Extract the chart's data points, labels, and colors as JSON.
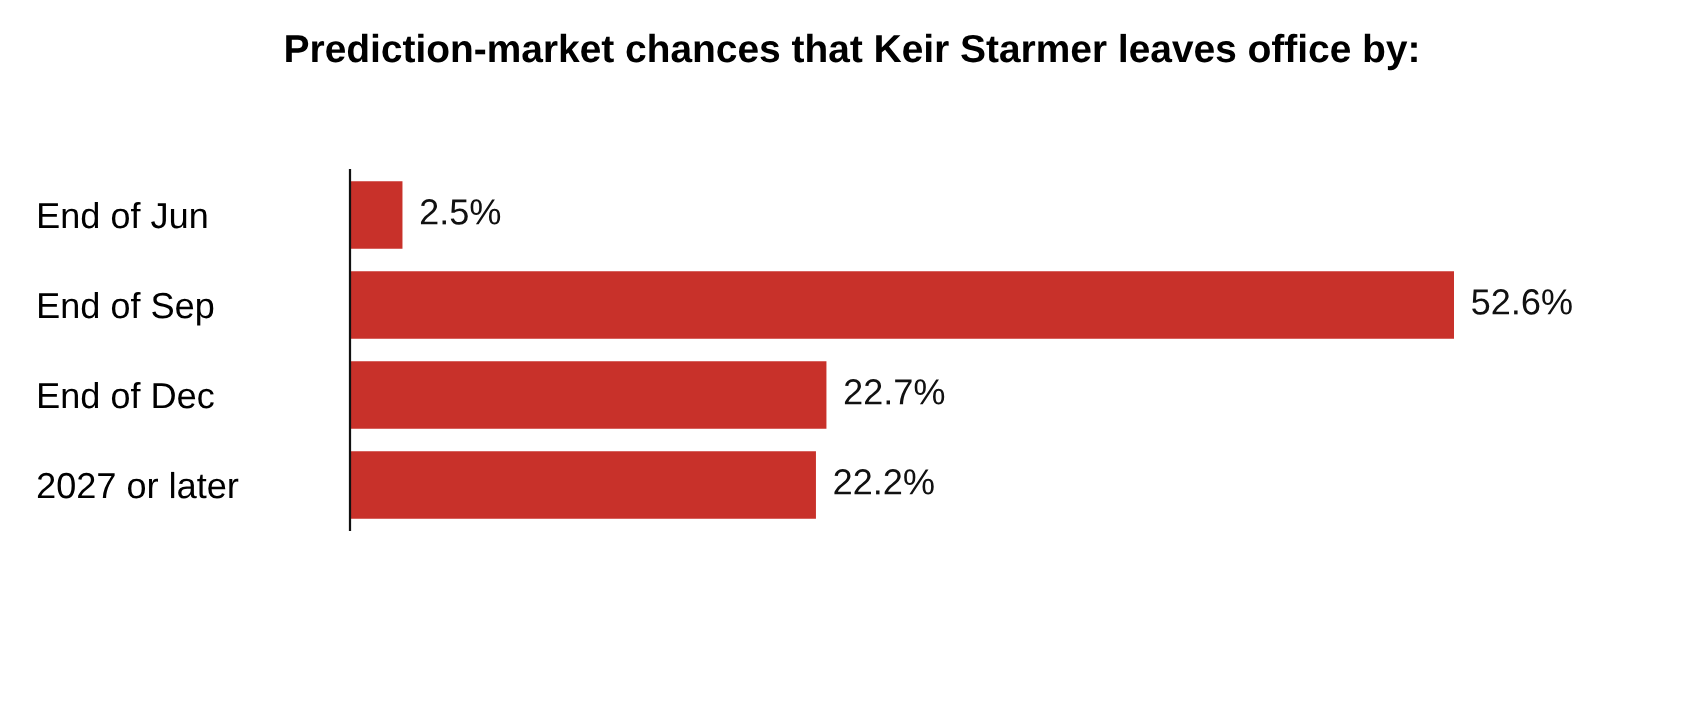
{
  "chart_data": {
    "type": "bar",
    "orientation": "horizontal",
    "title": "Prediction-market chances that Keir Starmer leaves office by:",
    "categories": [
      "End of Jun",
      "End of Sep",
      "End of Dec",
      "2027 or later"
    ],
    "values": [
      2.5,
      52.6,
      22.7,
      22.2
    ],
    "color": "#c8312a",
    "value_labels": [
      "2.5%",
      "52.6%",
      "22.7%",
      "22.2%"
    ],
    "grid": false,
    "legend": false
  }
}
